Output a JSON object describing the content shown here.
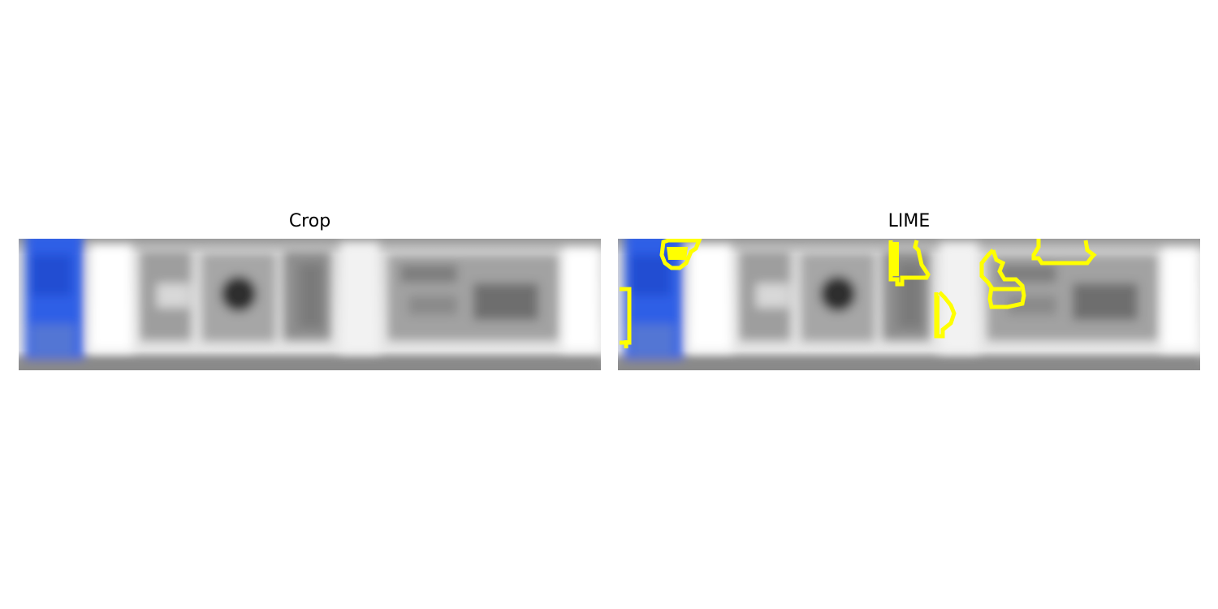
{
  "titles": {
    "crop": "Crop",
    "lime": "LIME"
  },
  "colors": {
    "background": "#ffffff",
    "title_text": "#000000",
    "plate_blue": "#2f5fe6",
    "plate_gray_light": "#e8e8e8",
    "plate_gray_mid": "#a3a3a3",
    "plate_gray_dark": "#555555",
    "lime_outline": "#ffff00"
  }
}
